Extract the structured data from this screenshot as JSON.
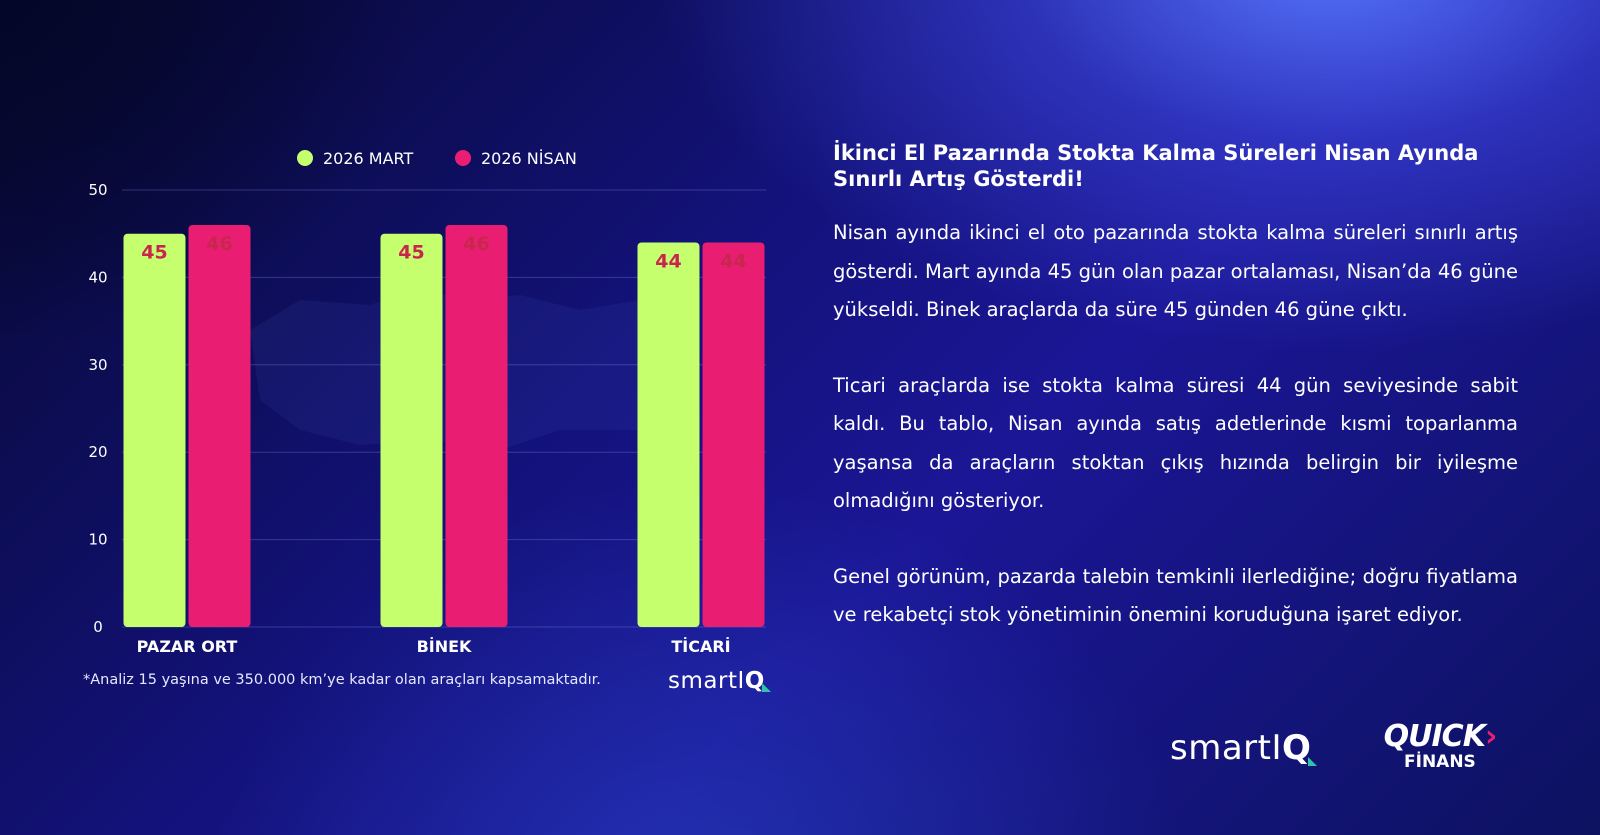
{
  "chart_data": {
    "type": "bar",
    "categories": [
      "PAZAR ORT",
      "BİNEK",
      "TİCARİ"
    ],
    "series": [
      {
        "name": "2026 MART",
        "values": [
          45,
          45,
          44
        ],
        "color": "#c5ff6e"
      },
      {
        "name": "2026 NİSAN",
        "values": [
          46,
          46,
          44
        ],
        "color": "#e91e72"
      }
    ],
    "yticks": [
      0,
      10,
      20,
      30,
      40,
      50
    ],
    "ylim": [
      0,
      50
    ],
    "grid": true,
    "legend_position": "top",
    "value_label_color": "#c9264f"
  },
  "footnote": "*Analiz 15 yaşına ve 350.000 km’ye kadar olan araçları kapsamaktadır.",
  "logos": {
    "smartiq_text": "smartI",
    "smartiq_q": "Q",
    "quick_text": "QUICK",
    "quick_arrow": "›",
    "finans_text": "FİNANS"
  },
  "article": {
    "title": "İkinci El Pazarında Stokta Kalma Süreleri Nisan Ayında Sınırlı Artış Gösterdi!",
    "paragraphs": [
      "Nisan ayında ikinci el oto pazarında stokta kalma süreleri sınırlı artış gösterdi. Mart ayında 45 gün olan pazar ortalaması, Nisan’da 46 güne yükseldi. Binek araçlarda da süre 45 günden 46 güne çıktı.",
      "Ticari araçlarda ise stokta kalma süresi 44 gün seviyesinde sabit kaldı. Bu tablo, Nisan ayında satış adetlerinde kısmi toparlanma yaşansa da araçların stoktan çıkış hızında belirgin bir iyileşme olmadığını gösteriyor.",
      "Genel görünüm, pazarda talebin temkinli ilerlediğine; doğru fiyatlama ve rekabetçi stok yönetiminin önemini koruduğuna işaret ediyor."
    ]
  }
}
